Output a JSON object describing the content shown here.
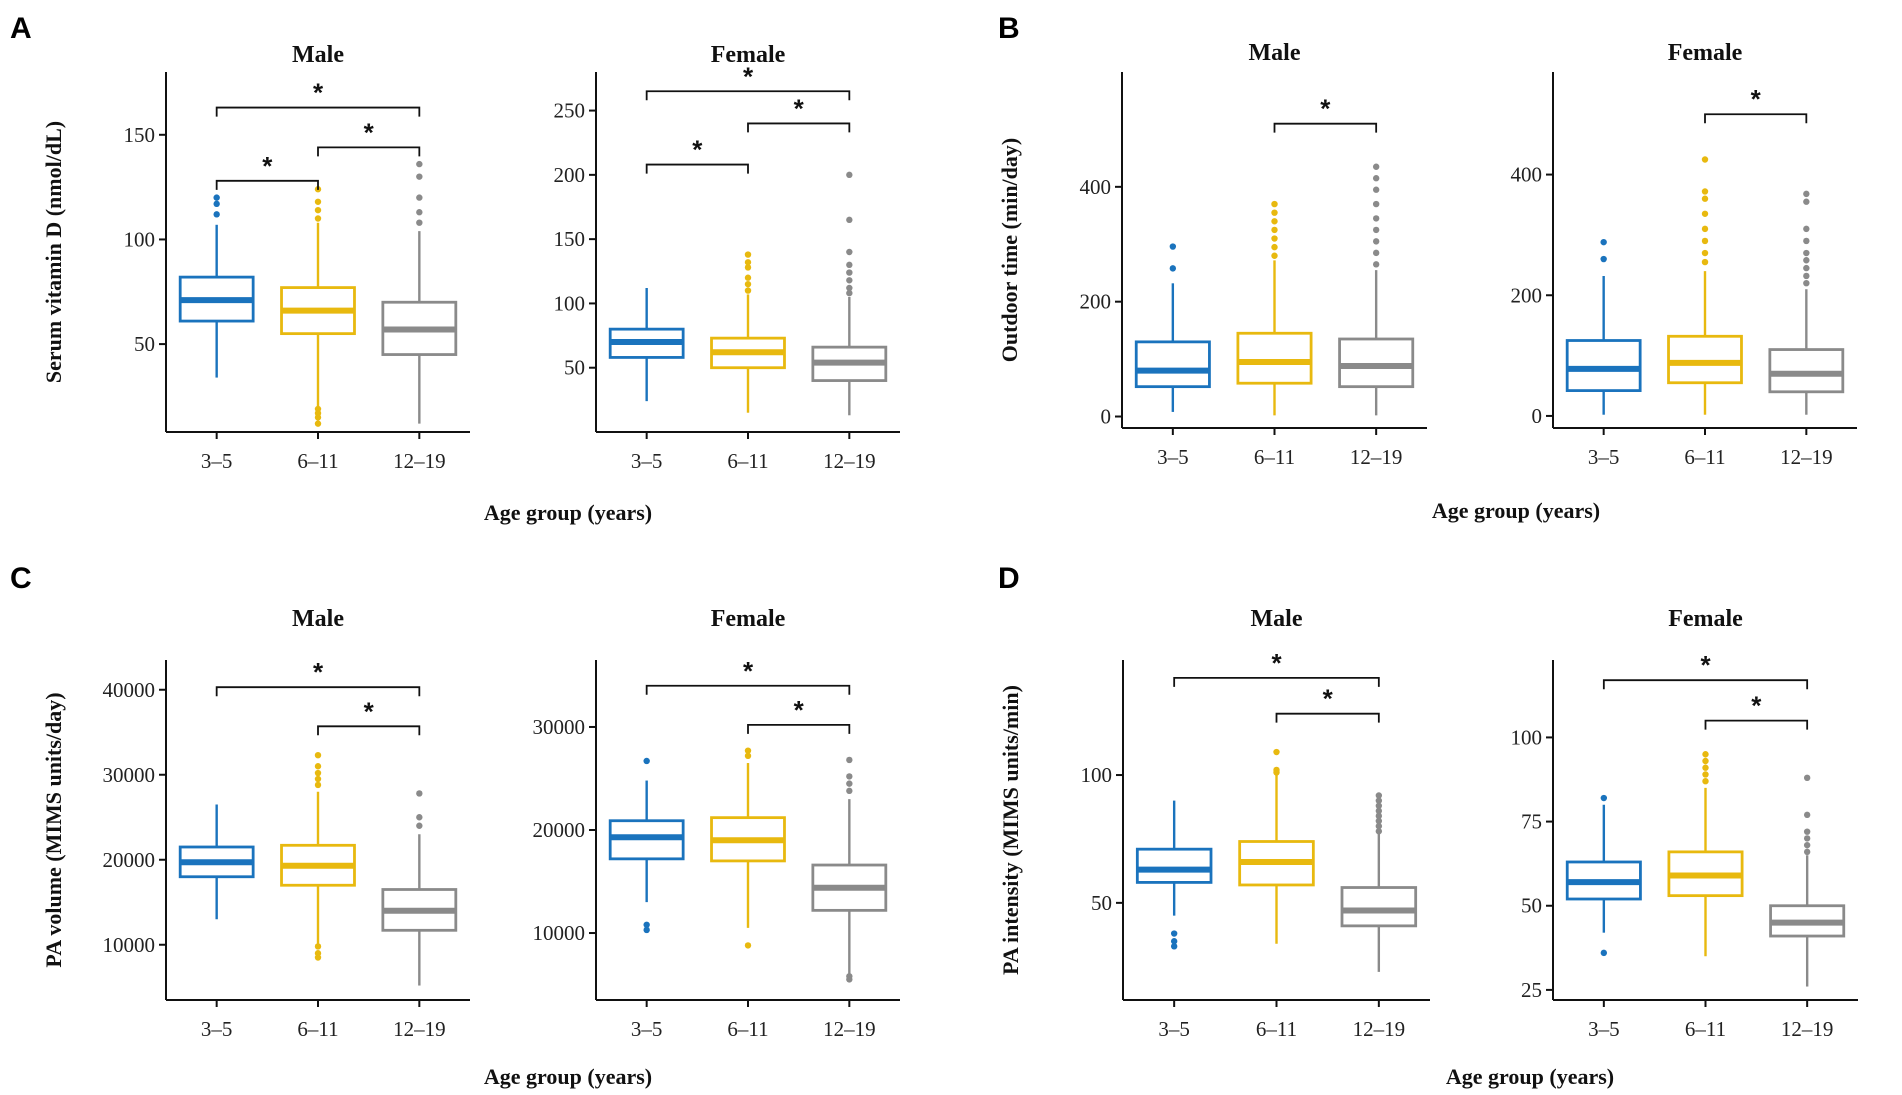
{
  "colors": {
    "3–5": "#1a73bd",
    "6–11": "#e8b90f",
    "12–19": "#8a8a8a"
  },
  "x_axis_label": "Age group (years)",
  "significance_symbol": "*",
  "chart_data": [
    {
      "panel": "A",
      "type": "box",
      "title": "Male",
      "ylabel": "Serum vitamin D (nmol/dL)",
      "categories": [
        "3–5",
        "6–11",
        "12–19"
      ],
      "ylim": [
        8,
        180
      ],
      "yticks": [
        50,
        100,
        150
      ],
      "boxes": [
        {
          "min": 34,
          "q1": 61,
          "median": 71,
          "q3": 82,
          "max": 107,
          "outliers": [
            112,
            117,
            120
          ]
        },
        {
          "min": 14,
          "q1": 55,
          "median": 66,
          "q3": 77,
          "max": 108,
          "outliers": [
            12,
            15,
            17,
            19,
            110,
            114,
            118,
            124
          ]
        },
        {
          "min": 12,
          "q1": 45,
          "median": 57,
          "q3": 70,
          "max": 104,
          "outliers": [
            108,
            113,
            120,
            130,
            136
          ]
        }
      ],
      "brackets": [
        {
          "from": 0,
          "to": 2,
          "y": 163,
          "label": "*"
        },
        {
          "from": 1,
          "to": 2,
          "y": 144,
          "label": "*"
        },
        {
          "from": 0,
          "to": 1,
          "y": 128,
          "label": "*"
        }
      ]
    },
    {
      "panel": "A",
      "type": "box",
      "title": "Female",
      "ylabel": "",
      "categories": [
        "3–5",
        "6–11",
        "12–19"
      ],
      "ylim": [
        0,
        280
      ],
      "yticks": [
        50,
        100,
        150,
        200,
        250
      ],
      "boxes": [
        {
          "min": 24,
          "q1": 58,
          "median": 70,
          "q3": 80,
          "max": 112,
          "outliers": []
        },
        {
          "min": 15,
          "q1": 50,
          "median": 62,
          "q3": 73,
          "max": 107,
          "outliers": [
            110,
            115,
            120,
            128,
            132,
            138
          ]
        },
        {
          "min": 13,
          "q1": 40,
          "median": 54,
          "q3": 66,
          "max": 105,
          "outliers": [
            108,
            112,
            118,
            124,
            130,
            140,
            165,
            200
          ]
        }
      ],
      "brackets": [
        {
          "from": 0,
          "to": 2,
          "y": 265,
          "label": "*"
        },
        {
          "from": 1,
          "to": 2,
          "y": 240,
          "label": "*"
        },
        {
          "from": 0,
          "to": 1,
          "y": 208,
          "label": "*"
        }
      ]
    },
    {
      "panel": "B",
      "type": "box",
      "title": "Male",
      "ylabel": "Outdoor time (min/day)",
      "categories": [
        "3–5",
        "6–11",
        "12–19"
      ],
      "ylim": [
        -20,
        600
      ],
      "yticks": [
        0,
        200,
        400
      ],
      "boxes": [
        {
          "min": 8,
          "q1": 52,
          "median": 80,
          "q3": 130,
          "max": 232,
          "outliers": [
            258,
            296
          ]
        },
        {
          "min": 2,
          "q1": 58,
          "median": 95,
          "q3": 145,
          "max": 272,
          "outliers": [
            280,
            295,
            310,
            325,
            340,
            355,
            370
          ]
        },
        {
          "min": 2,
          "q1": 52,
          "median": 88,
          "q3": 135,
          "max": 255,
          "outliers": [
            265,
            285,
            305,
            325,
            345,
            370,
            395,
            415,
            435
          ]
        }
      ],
      "brackets": [
        {
          "from": 1,
          "to": 2,
          "y": 510,
          "label": "*"
        }
      ]
    },
    {
      "panel": "B",
      "type": "box",
      "title": "Female",
      "ylabel": "",
      "categories": [
        "3–5",
        "6–11",
        "12–19"
      ],
      "ylim": [
        -20,
        570
      ],
      "yticks": [
        0,
        200,
        400
      ],
      "boxes": [
        {
          "min": 2,
          "q1": 42,
          "median": 78,
          "q3": 125,
          "max": 232,
          "outliers": [
            260,
            288
          ]
        },
        {
          "min": 2,
          "q1": 55,
          "median": 88,
          "q3": 132,
          "max": 240,
          "outliers": [
            255,
            270,
            290,
            310,
            335,
            360,
            372,
            425
          ]
        },
        {
          "min": 2,
          "q1": 40,
          "median": 70,
          "q3": 110,
          "max": 210,
          "outliers": [
            220,
            232,
            245,
            258,
            270,
            290,
            310,
            355,
            368
          ]
        }
      ],
      "brackets": [
        {
          "from": 1,
          "to": 2,
          "y": 500,
          "label": "*"
        }
      ]
    },
    {
      "panel": "C",
      "type": "box",
      "title": "Male",
      "ylabel": "PA volume (MIMS units/day)",
      "categories": [
        "3–5",
        "6–11",
        "12–19"
      ],
      "ylim": [
        3500,
        43500
      ],
      "yticks": [
        10000,
        20000,
        30000,
        40000
      ],
      "boxes": [
        {
          "min": 13000,
          "q1": 18000,
          "median": 19700,
          "q3": 21500,
          "max": 26500,
          "outliers": []
        },
        {
          "min": 10000,
          "q1": 17000,
          "median": 19300,
          "q3": 21700,
          "max": 28000,
          "outliers": [
            8500,
            9000,
            9800,
            28800,
            29500,
            30200,
            31000,
            32300
          ]
        },
        {
          "min": 5200,
          "q1": 11700,
          "median": 14000,
          "q3": 16500,
          "max": 23000,
          "outliers": [
            24000,
            25000,
            27800
          ]
        }
      ],
      "brackets": [
        {
          "from": 0,
          "to": 2,
          "y": 40300,
          "label": "*"
        },
        {
          "from": 1,
          "to": 2,
          "y": 35700,
          "label": "*"
        }
      ]
    },
    {
      "panel": "C",
      "type": "box",
      "title": "Female",
      "ylabel": "",
      "categories": [
        "3–5",
        "6–11",
        "12–19"
      ],
      "ylim": [
        3500,
        36500
      ],
      "yticks": [
        10000,
        20000,
        30000
      ],
      "boxes": [
        {
          "min": 13000,
          "q1": 17200,
          "median": 19300,
          "q3": 20900,
          "max": 24800,
          "outliers": [
            10300,
            10800,
            26700
          ]
        },
        {
          "min": 10500,
          "q1": 17000,
          "median": 19000,
          "q3": 21200,
          "max": 26500,
          "outliers": [
            8800,
            27200,
            27700
          ]
        },
        {
          "min": 6000,
          "q1": 12200,
          "median": 14400,
          "q3": 16600,
          "max": 23000,
          "outliers": [
            5500,
            5800,
            23800,
            24500,
            25200,
            26800
          ]
        }
      ],
      "brackets": [
        {
          "from": 0,
          "to": 2,
          "y": 34000,
          "label": "*"
        },
        {
          "from": 1,
          "to": 2,
          "y": 30200,
          "label": "*"
        }
      ]
    },
    {
      "panel": "D",
      "type": "box",
      "title": "Male",
      "ylabel": "PA intensity (MIMS units/min)",
      "categories": [
        "3–5",
        "6–11",
        "12–19"
      ],
      "ylim": [
        12,
        145
      ],
      "yticks": [
        50,
        100
      ],
      "boxes": [
        {
          "min": 45,
          "q1": 58,
          "median": 63,
          "q3": 71,
          "max": 90,
          "outliers": [
            33,
            35,
            38
          ]
        },
        {
          "min": 34,
          "q1": 57,
          "median": 66,
          "q3": 74,
          "max": 100,
          "outliers": [
            101,
            102,
            109
          ]
        },
        {
          "min": 23,
          "q1": 41,
          "median": 47,
          "q3": 56,
          "max": 77,
          "outliers": [
            78,
            80,
            82,
            84,
            86,
            88,
            90,
            92
          ]
        }
      ],
      "brackets": [
        {
          "from": 0,
          "to": 2,
          "y": 138,
          "label": "*"
        },
        {
          "from": 1,
          "to": 2,
          "y": 124,
          "label": "*"
        }
      ]
    },
    {
      "panel": "D",
      "type": "box",
      "title": "Female",
      "ylabel": "",
      "categories": [
        "3–5",
        "6–11",
        "12–19"
      ],
      "ylim": [
        22,
        123
      ],
      "yticks": [
        25,
        50,
        75,
        100
      ],
      "boxes": [
        {
          "min": 42,
          "q1": 52,
          "median": 57,
          "q3": 63,
          "max": 80,
          "outliers": [
            36,
            82
          ]
        },
        {
          "min": 35,
          "q1": 53,
          "median": 59,
          "q3": 66,
          "max": 85,
          "outliers": [
            87,
            89,
            91,
            93,
            95
          ]
        },
        {
          "min": 26,
          "q1": 41,
          "median": 45,
          "q3": 50,
          "max": 65,
          "outliers": [
            66,
            68,
            70,
            72,
            77,
            88
          ]
        }
      ],
      "brackets": [
        {
          "from": 0,
          "to": 2,
          "y": 117,
          "label": "*"
        },
        {
          "from": 1,
          "to": 2,
          "y": 105,
          "label": "*"
        }
      ]
    }
  ],
  "panels": [
    {
      "letter": "A"
    },
    {
      "letter": "B"
    },
    {
      "letter": "C"
    },
    {
      "letter": "D"
    }
  ]
}
